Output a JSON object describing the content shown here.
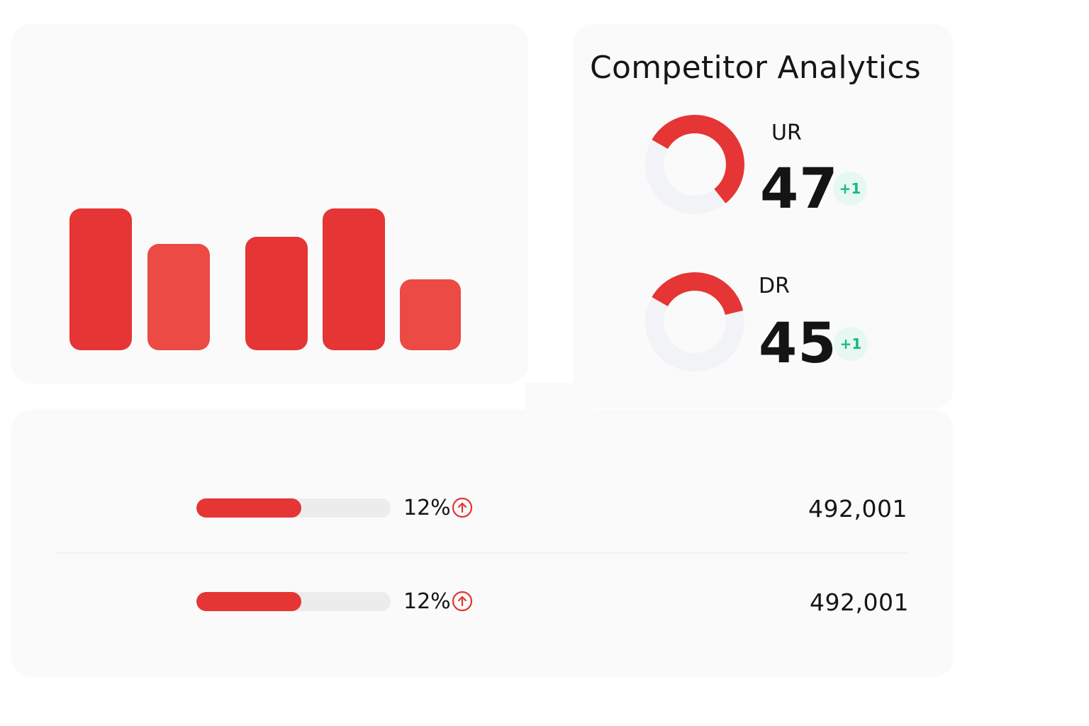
{
  "colors": {
    "accent": "#e53535",
    "accent_light": "#ec4a45",
    "positive": "#18b985",
    "track": "#ececec"
  },
  "bars_card": {
    "bars": [
      {
        "value": 1.0,
        "tone": "dark"
      },
      {
        "value": 0.75,
        "tone": "light"
      },
      {
        "value": 0.8,
        "tone": "dark"
      },
      {
        "value": 1.0,
        "tone": "dark"
      },
      {
        "value": 0.5,
        "tone": "light"
      }
    ]
  },
  "metrics": {
    "title": "Competitor Analytics",
    "items": [
      {
        "label": "UR",
        "value": "47",
        "delta": "+1",
        "gauge_fraction": 0.56
      },
      {
        "label": "DR",
        "value": "45",
        "delta": "+1",
        "gauge_fraction": 0.38
      }
    ]
  },
  "traffic": {
    "rows": [
      {
        "progress": 0.54,
        "percent": "12%",
        "trend_icon": "arrow-up-circle-icon",
        "value": "492,001"
      },
      {
        "progress": 0.54,
        "percent": "12%",
        "trend_icon": "arrow-up-circle-icon",
        "value": "492,001"
      }
    ]
  }
}
